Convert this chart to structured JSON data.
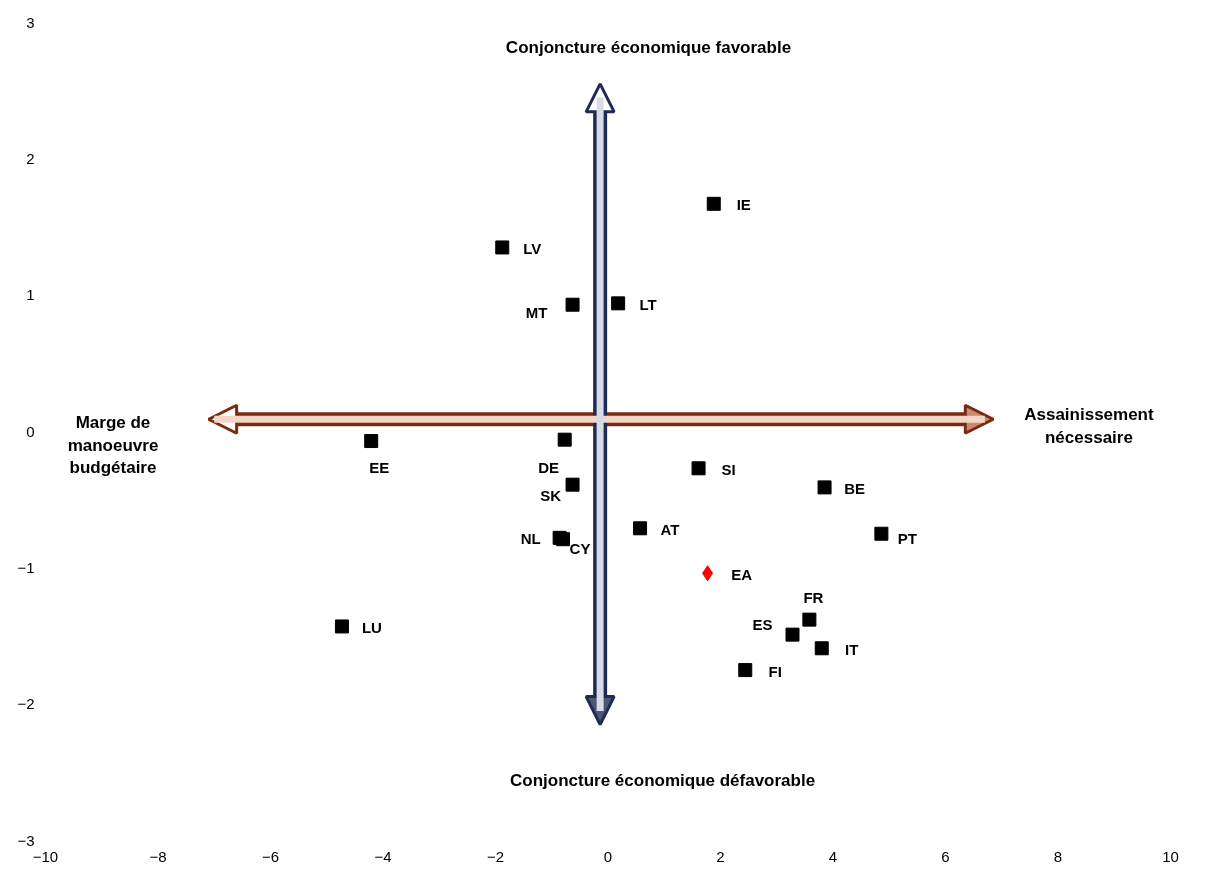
{
  "chart_data": {
    "type": "scatter",
    "xlim": [
      -10,
      10
    ],
    "ylim": [
      -3,
      3
    ],
    "xticks": [
      -10,
      -8,
      -6,
      -4,
      -2,
      0,
      2,
      4,
      6,
      8,
      10
    ],
    "yticks": [
      -3,
      -2,
      -1,
      0,
      1,
      2,
      3
    ],
    "grid": false,
    "series": [
      {
        "color": "#000000",
        "marker": "square",
        "x": [
          1.88,
          -1.88,
          -0.63,
          0.18,
          -4.21,
          -0.77,
          1.61,
          -0.63,
          3.85,
          0.57,
          -0.86,
          -0.8,
          4.86,
          3.58,
          3.28,
          3.8,
          2.44,
          -4.73
        ],
        "values": [
          1.67,
          1.35,
          0.93,
          0.94,
          -0.07,
          -0.06,
          -0.27,
          -0.39,
          -0.41,
          -0.71,
          -0.78,
          -0.79,
          -0.75,
          -1.38,
          -1.49,
          -1.59,
          -1.75,
          -1.43
        ],
        "value_labels": [
          "IE",
          "LV",
          "MT",
          "LT",
          "EE",
          "DE",
          "SI",
          "SK",
          "BE",
          "AT",
          "NL",
          "CY",
          "PT",
          "FR",
          "ES",
          "IT",
          "FI",
          "LU"
        ]
      },
      {
        "color": "#ff0000",
        "marker": "diamond",
        "x": [
          1.77
        ],
        "values": [
          -1.04
        ],
        "value_labels": [
          "EA"
        ]
      }
    ],
    "annotations": [
      "Conjoncture économique favorable",
      "Conjoncture économique défavorable",
      "Marge de\nmanoeuvre\nbudgétaire",
      "Assainissement\nnécessaire"
    ]
  }
}
